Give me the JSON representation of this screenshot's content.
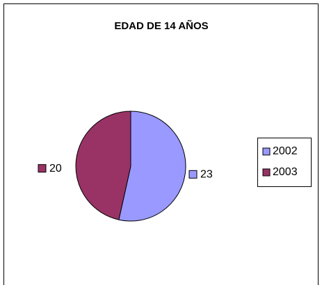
{
  "chart_data": {
    "type": "pie",
    "title": "EDAD DE 14 AÑOS",
    "categories": [
      "2002",
      "2003"
    ],
    "values": [
      23,
      20
    ],
    "colors": [
      "#9999ff",
      "#993366"
    ],
    "legend": "right"
  }
}
